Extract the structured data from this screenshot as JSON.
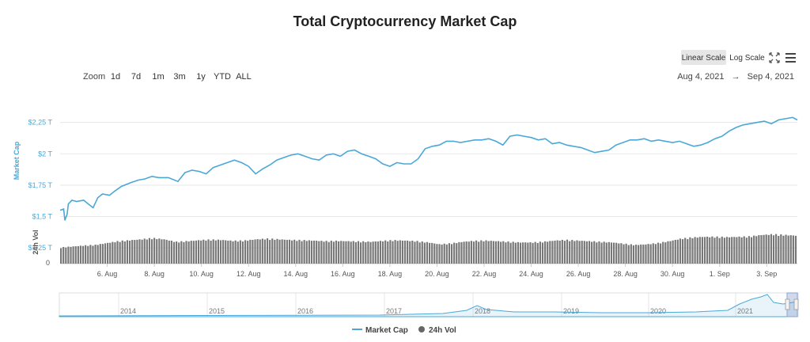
{
  "title": "Total Cryptocurrency Market Cap",
  "zoom": {
    "label": "Zoom",
    "buttons": [
      "1d",
      "7d",
      "1m",
      "3m",
      "1y",
      "YTD",
      "ALL"
    ]
  },
  "range": {
    "from": "Aug 4, 2021",
    "arrow": "→",
    "to": "Sep 4, 2021"
  },
  "scale_buttons": {
    "linear": "Linear Scale",
    "log": "Log Scale",
    "active": "linear"
  },
  "icons": {
    "fullscreen": "fullscreen-icon",
    "menu": "hamburger-menu-icon"
  },
  "colors": {
    "market_cap": "#4aa8d8",
    "volume": "#666666",
    "accent_blue": "#4aa8d8"
  },
  "chart_data": {
    "type": "line",
    "title": "Total Cryptocurrency Market Cap",
    "x_tick_labels": [
      "6. Aug",
      "8. Aug",
      "10. Aug",
      "12. Aug",
      "14. Aug",
      "16. Aug",
      "18. Aug",
      "20. Aug",
      "22. Aug",
      "24. Aug",
      "26. Aug",
      "28. Aug",
      "30. Aug",
      "1. Sep",
      "3. Sep"
    ],
    "x_tick_days": [
      2,
      4,
      6,
      8,
      10,
      12,
      14,
      16,
      18,
      20,
      22,
      24,
      26,
      28,
      30
    ],
    "x_range_days": [
      0,
      31.3
    ],
    "y_axis_market_cap": {
      "label": "Market Cap",
      "ticks": [
        "$1,25 T",
        "$1,5 T",
        "$1,75 T",
        "$2 T",
        "$2,25 T"
      ],
      "tick_values": [
        1.25,
        1.5,
        1.75,
        2.0,
        2.25
      ],
      "unit": "T"
    },
    "y_axis_volume": {
      "label": "24h Vol",
      "ticks": [
        "0"
      ]
    },
    "series": [
      {
        "name": "Market Cap",
        "x": [
          0,
          0.15,
          0.2,
          0.3,
          0.35,
          0.5,
          0.7,
          1.0,
          1.2,
          1.4,
          1.6,
          1.8,
          2.1,
          2.3,
          2.6,
          3.0,
          3.3,
          3.6,
          3.9,
          4.2,
          4.6,
          5.0,
          5.3,
          5.6,
          5.9,
          6.2,
          6.5,
          6.8,
          7.1,
          7.4,
          7.7,
          8.0,
          8.3,
          8.6,
          8.9,
          9.2,
          9.5,
          9.8,
          10.1,
          10.4,
          10.7,
          11.0,
          11.3,
          11.6,
          11.9,
          12.2,
          12.5,
          12.8,
          13.1,
          13.4,
          13.7,
          14.0,
          14.3,
          14.6,
          14.9,
          15.2,
          15.5,
          15.8,
          16.1,
          16.4,
          16.7,
          17.0,
          17.3,
          17.6,
          17.9,
          18.2,
          18.5,
          18.8,
          19.1,
          19.4,
          19.7,
          20.0,
          20.3,
          20.6,
          20.9,
          21.2,
          21.5,
          21.8,
          22.1,
          22.4,
          22.7,
          23.0,
          23.3,
          23.6,
          23.9,
          24.2,
          24.5,
          24.8,
          25.1,
          25.4,
          25.7,
          26.0,
          26.3,
          26.6,
          26.9,
          27.2,
          27.5,
          27.8,
          28.1,
          28.4,
          28.7,
          29.0,
          29.3,
          29.6,
          29.9,
          30.2,
          30.5,
          30.8,
          31.1,
          31.3
        ],
        "y": [
          1.55,
          1.56,
          1.47,
          1.52,
          1.6,
          1.63,
          1.62,
          1.63,
          1.6,
          1.57,
          1.65,
          1.68,
          1.67,
          1.7,
          1.74,
          1.77,
          1.79,
          1.8,
          1.82,
          1.81,
          1.81,
          1.78,
          1.85,
          1.87,
          1.86,
          1.84,
          1.89,
          1.91,
          1.93,
          1.95,
          1.93,
          1.9,
          1.84,
          1.88,
          1.91,
          1.95,
          1.97,
          1.99,
          2.0,
          1.98,
          1.96,
          1.95,
          1.99,
          2.0,
          1.98,
          2.02,
          2.03,
          2.0,
          1.98,
          1.96,
          1.92,
          1.9,
          1.93,
          1.92,
          1.92,
          1.96,
          2.04,
          2.06,
          2.07,
          2.1,
          2.1,
          2.09,
          2.1,
          2.11,
          2.11,
          2.12,
          2.1,
          2.07,
          2.14,
          2.15,
          2.14,
          2.13,
          2.11,
          2.12,
          2.08,
          2.09,
          2.07,
          2.06,
          2.05,
          2.03,
          2.01,
          2.02,
          2.03,
          2.07,
          2.09,
          2.11,
          2.11,
          2.12,
          2.1,
          2.11,
          2.1,
          2.09,
          2.1,
          2.08,
          2.06,
          2.07,
          2.09,
          2.12,
          2.14,
          2.18,
          2.21,
          2.23,
          2.24,
          2.25,
          2.26,
          2.24,
          2.27,
          2.28,
          2.29,
          2.27
        ]
      },
      {
        "name": "24h Vol",
        "relative_heights": [
          0.52,
          0.55,
          0.58,
          0.6,
          0.66,
          0.72,
          0.75,
          0.78,
          0.82,
          0.78,
          0.7,
          0.72,
          0.75,
          0.77,
          0.76,
          0.73,
          0.74,
          0.78,
          0.8,
          0.78,
          0.76,
          0.75,
          0.74,
          0.72,
          0.73,
          0.72,
          0.71,
          0.7,
          0.73,
          0.75,
          0.74,
          0.72,
          0.68,
          0.62,
          0.65,
          0.7,
          0.73,
          0.74,
          0.72,
          0.7,
          0.68,
          0.68,
          0.7,
          0.74,
          0.76,
          0.74,
          0.72,
          0.7,
          0.68,
          0.64,
          0.6,
          0.62,
          0.66,
          0.72,
          0.8,
          0.84,
          0.86,
          0.86,
          0.85,
          0.86,
          0.87,
          0.92,
          0.94,
          0.92,
          0.9
        ]
      }
    ],
    "legend": {
      "items": [
        "Market Cap",
        "24h Vol"
      ],
      "placement": "bottom-center"
    }
  },
  "navigator": {
    "years": [
      "2014",
      "2015",
      "2016",
      "2017",
      "2018",
      "2019",
      "2020",
      "2021"
    ]
  }
}
